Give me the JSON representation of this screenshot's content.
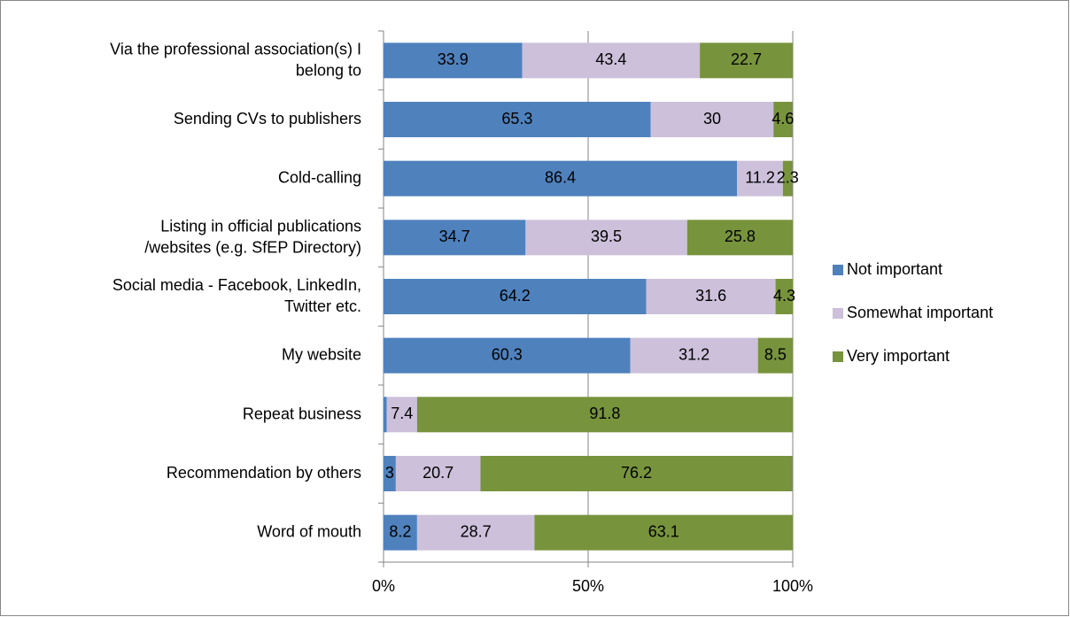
{
  "chart_data": {
    "type": "stacked-bar-horizontal",
    "categories": [
      "Via the professional association(s) I belong to",
      "Sending CVs to publishers",
      "Cold-calling",
      "Listing in official publications /websites (e.g. SfEP Directory)",
      "Social media - Facebook, LinkedIn, Twitter etc.",
      "My website",
      "Repeat business",
      "Recommendation by others",
      "Word of mouth"
    ],
    "series": [
      {
        "name": "Not important",
        "color": "#4f81bd",
        "values": [
          33.9,
          65.3,
          86.4,
          34.7,
          64.2,
          60.3,
          0.8,
          3,
          8.2
        ],
        "value_labels": [
          "33.9",
          "65.3",
          "86.4",
          "34.7",
          "64.2",
          "60.3",
          null,
          "3",
          "8.2"
        ]
      },
      {
        "name": "Somewhat important",
        "color": "#ccc0da",
        "values": [
          43.4,
          30,
          11.2,
          39.5,
          31.6,
          31.2,
          7.4,
          20.7,
          28.7
        ]
      },
      {
        "name": "Very important",
        "color": "#77933c",
        "values": [
          22.7,
          4.6,
          2.3,
          25.8,
          4.3,
          8.5,
          91.8,
          76.2,
          63.1
        ]
      }
    ],
    "xlim": [
      0,
      100
    ],
    "xticks": [
      {
        "value": 0,
        "label": "0%"
      },
      {
        "value": 50,
        "label": "50%"
      },
      {
        "value": 100,
        "label": "100%"
      }
    ],
    "grid": true,
    "legend": "right"
  }
}
